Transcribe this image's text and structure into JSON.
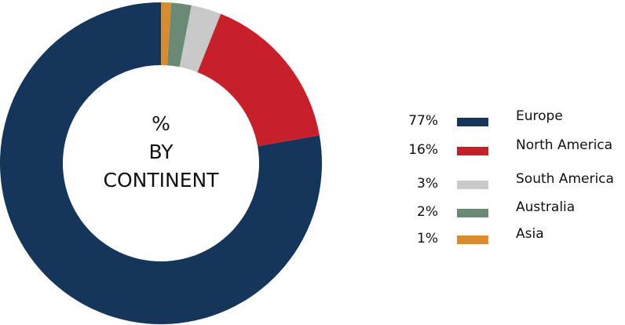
{
  "chart_data": {
    "type": "donut",
    "title": "% BY CONTINENT",
    "series": [
      {
        "name": "Europe",
        "color": "#15365a",
        "values": [
          77
        ],
        "value_labels": [
          "77%"
        ]
      },
      {
        "name": "North America",
        "color": "#c8202a",
        "values": [
          16
        ],
        "value_labels": [
          "16%"
        ]
      },
      {
        "name": "South America",
        "color": "#c9c9c9",
        "values": [
          3
        ],
        "value_labels": [
          "3%"
        ]
      },
      {
        "name": "Australia",
        "color": "#6b8a76",
        "values": [
          2
        ],
        "value_labels": [
          "2%"
        ]
      },
      {
        "name": "Asia",
        "color": "#d98c2e",
        "values": [
          1
        ],
        "value_labels": [
          "1%"
        ]
      }
    ]
  }
}
